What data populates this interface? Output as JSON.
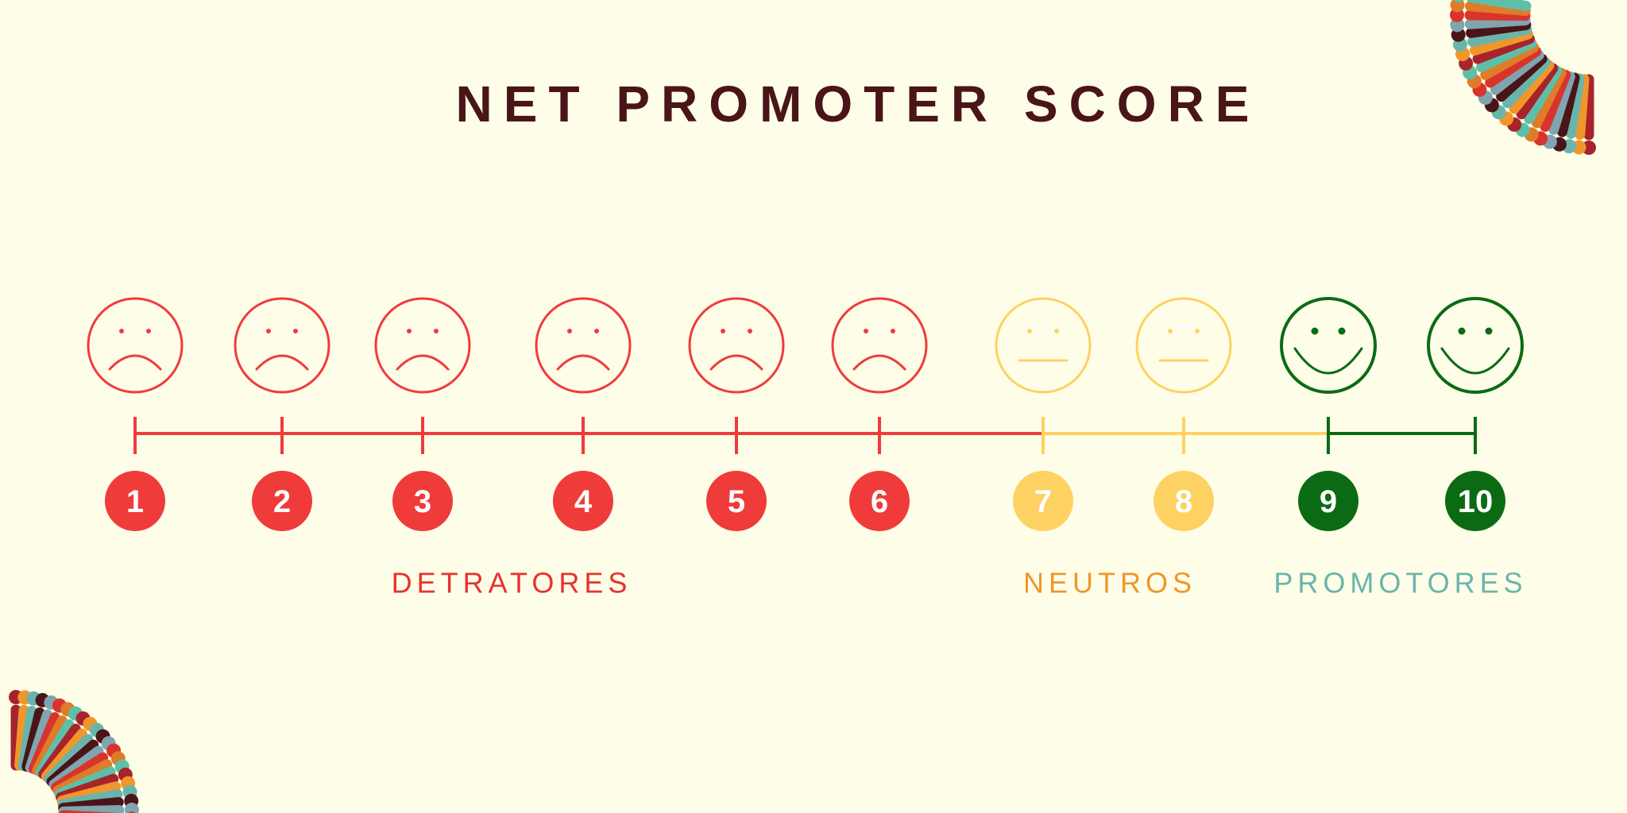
{
  "title": "NET PROMOTER SCORE",
  "groups": [
    {
      "label": "DETRATORES",
      "color": "#f03b3b",
      "label_color": "#e8322f",
      "points": [
        "1",
        "2",
        "3",
        "4",
        "5",
        "6"
      ]
    },
    {
      "label": "NEUTROS",
      "color": "#fdd262",
      "label_color": "#f0962a",
      "points": [
        "7",
        "8"
      ]
    },
    {
      "label": "PROMOTORES",
      "color": "#0b6b14",
      "label_color": "#6ab5ab",
      "points": [
        "9",
        "10"
      ]
    }
  ]
}
